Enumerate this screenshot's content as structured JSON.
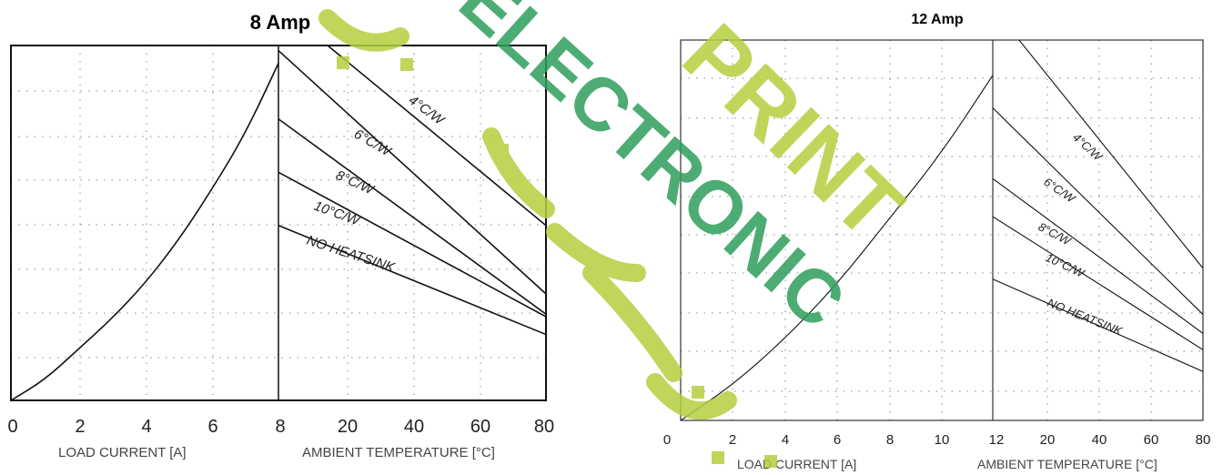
{
  "colors": {
    "watermark_green": "#2e9e5b",
    "watermark_lime": "#b4cf3f",
    "line": "#111111",
    "grid": "#888888"
  },
  "watermark": {
    "words": [
      "ELECTRONIC",
      "PRINT"
    ]
  },
  "chart_data": [
    {
      "type": "line",
      "title": "8 Amp",
      "current_panel": {
        "xlabel": "LOAD CURRENT [A]",
        "x_ticks": [
          "0",
          "2",
          "4",
          "6",
          "8"
        ],
        "xlim": [
          0,
          8
        ],
        "ylim": [
          0,
          14
        ],
        "grid": "dotted",
        "series": [
          {
            "x": [
              0,
              1,
              2,
              3,
              4,
              5,
              6,
              7,
              8
            ],
            "y": [
              0,
              0.8,
              2.0,
              3.2,
              4.6,
              6.3,
              8.3,
              10.5,
              13.3
            ]
          }
        ]
      },
      "temperature_panel": {
        "xlabel": "AMBIENT TEMPERATURE [°C]",
        "x_ticks": [
          "8",
          "20",
          "40",
          "60",
          "80"
        ],
        "xlim": [
          8,
          80
        ],
        "ylim": [
          0,
          14
        ],
        "grid": "dotted",
        "series": [
          {
            "name": "4°C/W",
            "x": [
              8,
              80
            ],
            "y": [
              15.6,
              6.9
            ]
          },
          {
            "name": "6°C/W",
            "x": [
              8,
              80
            ],
            "y": [
              13.8,
              4.2
            ]
          },
          {
            "name": "8°C/W",
            "x": [
              8,
              80
            ],
            "y": [
              11.1,
              3.4
            ]
          },
          {
            "name": "10°C/W",
            "x": [
              8,
              80
            ],
            "y": [
              9.0,
              3.3
            ]
          },
          {
            "name": "NO HEATSINK",
            "x": [
              8,
              80
            ],
            "y": [
              6.9,
              2.6
            ]
          }
        ]
      }
    },
    {
      "type": "line",
      "title": "12 Amp",
      "current_panel": {
        "xlabel": "LOAD CURRENT [A]",
        "x_ticks": [
          "0",
          "2",
          "4",
          "6",
          "8",
          "10",
          "12"
        ],
        "xlim": [
          0,
          12
        ],
        "ylim": [
          0,
          14
        ],
        "grid": "dotted",
        "series": [
          {
            "x": [
              0,
              2,
              4,
              6,
              8,
              10,
              12
            ],
            "y": [
              0,
              1.3,
              3.0,
              5.0,
              7.4,
              9.8,
              12.7
            ]
          }
        ]
      },
      "temperature_panel": {
        "xlabel": "AMBIENT TEMPERATURE [°C]",
        "x_ticks": [
          "12",
          "20",
          "40",
          "60",
          "80"
        ],
        "xlim": [
          12,
          80
        ],
        "ylim": [
          0,
          14
        ],
        "grid": "dotted",
        "series": [
          {
            "name": "4°C/W",
            "x": [
              12,
              80
            ],
            "y": [
              15.2,
              5.6
            ]
          },
          {
            "name": "6°C/W",
            "x": [
              12,
              80
            ],
            "y": [
              11.5,
              3.9
            ]
          },
          {
            "name": "8°C/W",
            "x": [
              12,
              80
            ],
            "y": [
              8.9,
              3.2
            ]
          },
          {
            "name": "10°C/W",
            "x": [
              12,
              80
            ],
            "y": [
              7.5,
              2.6
            ]
          },
          {
            "name": "NO HEATSINK",
            "x": [
              12,
              80
            ],
            "y": [
              5.2,
              1.8
            ]
          }
        ]
      }
    }
  ]
}
